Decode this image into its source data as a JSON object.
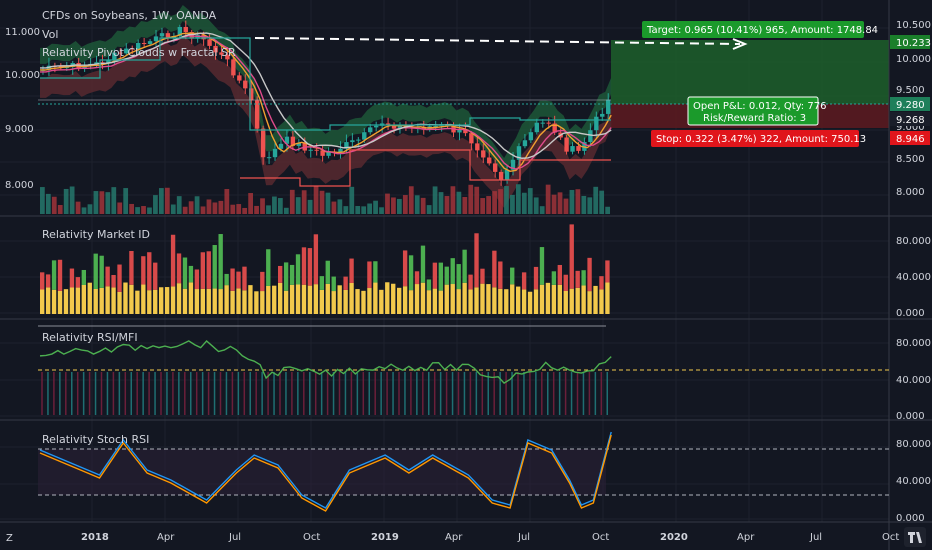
{
  "chart_title": "CFDs on Soybeans, 1W, OANDA",
  "indicators": {
    "main": [
      "Vol",
      "Relativity Pivot Clouds w Fractal SR"
    ],
    "pane2": "Relativity Market ID",
    "pane3": "Relativity RSI/MFI",
    "pane4": "Relativity Stoch RSI"
  },
  "price_axis": [
    "11.000",
    "10.000",
    "9.000",
    "8.000"
  ],
  "right_axis_main": [
    "10.500",
    "10.000",
    "9.500",
    "9.000",
    "8.500",
    "8.000"
  ],
  "right_axis_pane2": [
    "80.000",
    "40.000",
    "0.000"
  ],
  "right_axis_pane3": [
    "80.000",
    "40.000",
    "0.000"
  ],
  "right_axis_pane4": [
    "80.000",
    "40.000",
    "0.000"
  ],
  "price_tags": {
    "target": "10.233",
    "current": "9.280",
    "entry": "9.268",
    "stop": "8.946"
  },
  "trade_box": {
    "target_label": "Target: 0.965 (10.41%) 965, Amount: 1748.84",
    "open_pl": "Open P&L: 0.012, Qty: 776",
    "rr": "Risk/Reward Ratio: 3",
    "stop_label": "Stop: 0.322 (3.47%) 322, Amount: 750.13"
  },
  "time_axis": [
    "2018",
    "Apr",
    "Jul",
    "Oct",
    "2019",
    "Apr",
    "Jul",
    "Oct",
    "2020",
    "Apr",
    "Jul",
    "Oct"
  ],
  "colors": {
    "up": "#26a69a",
    "down": "#ef5350",
    "bg": "#131722",
    "target_green": "#1b7f2b",
    "stop_red": "#e0151b",
    "cloud_green": "#1e5b3a",
    "cloud_red": "#5c2b31"
  },
  "icons": {
    "logo": "tradingview-logo-icon",
    "timezone": "z-icon"
  }
}
